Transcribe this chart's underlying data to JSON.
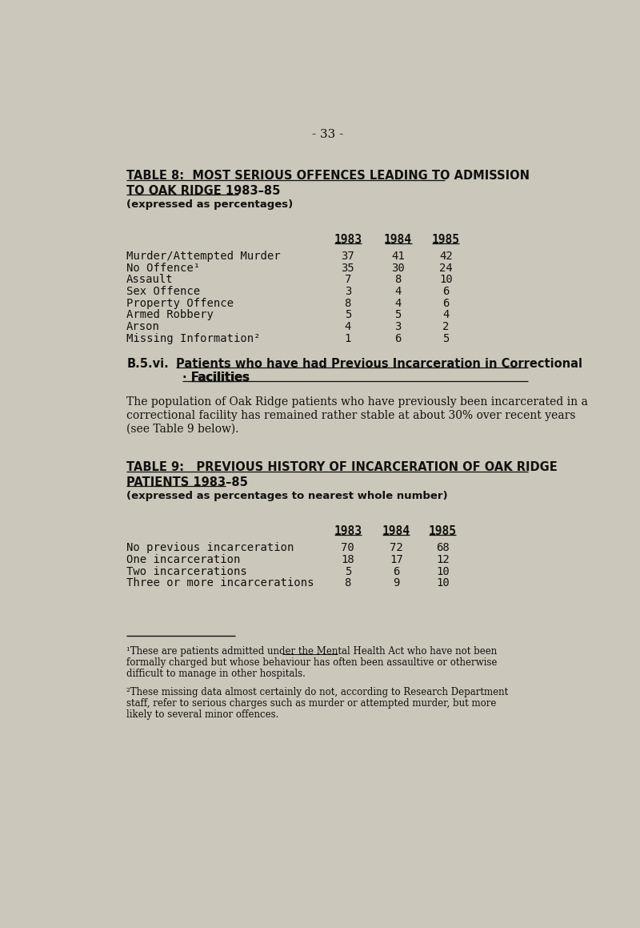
{
  "bg_color": "#cbc7ba",
  "page_num": "- 33 -",
  "table8_title1": "TABLE 8:  MOST SERIOUS OFFENCES LEADING TO ADMISSION",
  "table8_title2": "TO OAK RIDGE 1983–85",
  "table8_subtitle": "(expressed as percentages)",
  "table8_years": [
    "1983",
    "1984",
    "1985"
  ],
  "table8_rows": [
    [
      "Murder/Attempted Murder",
      "37",
      "41",
      "42"
    ],
    [
      "No Offence¹",
      "35",
      "30",
      "24"
    ],
    [
      "Assault",
      "7",
      "8",
      "10"
    ],
    [
      "Sex Offence",
      "3",
      "4",
      "6"
    ],
    [
      "Property Offence",
      "8",
      "4",
      "6"
    ],
    [
      "Armed Robbery",
      "5",
      "5",
      "4"
    ],
    [
      "Arson",
      "4",
      "3",
      "2"
    ],
    [
      "Missing Information²",
      "1",
      "6",
      "5"
    ]
  ],
  "section_label": "B.5.vi.",
  "section_title": "Patients who have had Previous Incarceration in Correctional",
  "section_title2": "· Facilities",
  "para1_lines": [
    "The population of Oak Ridge patients who have previously been incarcerated in a",
    "correctional facility has remained rather stable at about 30% over recent years",
    "(see Table 9 below)."
  ],
  "table9_title1": "TABLE 9:   PREVIOUS HISTORY OF INCARCERATION OF OAK RIDGE",
  "table9_title2": "PATIENTS 1983–85",
  "table9_subtitle": "(expressed as percentages to nearest whole number)",
  "table9_years": [
    "1983",
    "1984",
    "1985"
  ],
  "table9_rows": [
    [
      "No previous incarceration",
      "70",
      "72",
      "68"
    ],
    [
      "One incarceration",
      "18",
      "17",
      "12"
    ],
    [
      "Two incarcerations",
      "5",
      "6",
      "10"
    ],
    [
      "Three or more incarcerations",
      "8",
      "9",
      "10"
    ]
  ],
  "footnote1_lines": [
    "¹These are patients admitted under the Mental Health Act who have not been",
    "formally charged but whose behaviour has often been assaultive or otherwise",
    "difficult to manage in other hospitals."
  ],
  "footnote2_lines": [
    "²These missing data almost certainly do not, according to Research Department",
    "staff, refer to serious charges such as murder or attempted murder, but more",
    "likely to several minor offences."
  ],
  "text_color": "#111111",
  "mono_font": "DejaVu Sans Mono",
  "serif_font": "DejaVu Serif",
  "sans_font": "DejaVu Sans"
}
